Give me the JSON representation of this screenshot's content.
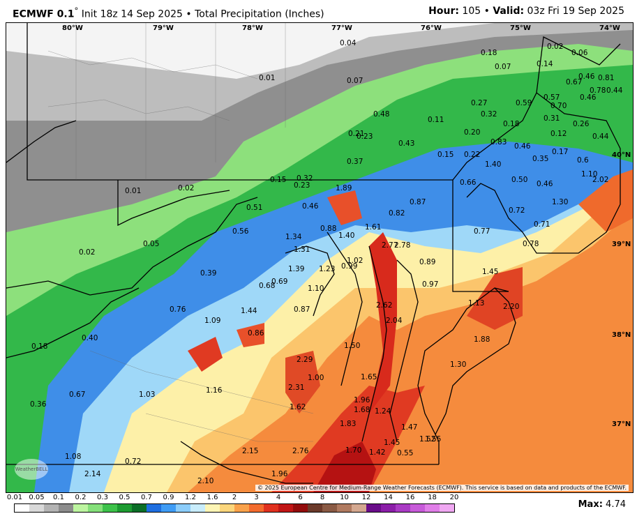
{
  "header": {
    "model": "ECMWF 0.1",
    "degree": "°",
    "init": "Init 18z 14 Sep 2025",
    "bullet": "•",
    "product": "Total Precipitation (Inches)",
    "hour_label": "Hour:",
    "hour_value": "105",
    "valid_label": "Valid:",
    "valid_value": "03z Fri 19 Sep 2025"
  },
  "map": {
    "longitude_labels": [
      "80°W",
      "79°W",
      "78°W",
      "77°W",
      "76°W",
      "75°W",
      "74°W"
    ],
    "latitude_labels": [
      "40°N",
      "39°N",
      "38°N",
      "37°N"
    ],
    "value_labels": [
      "0.04",
      "0.18",
      "0.02",
      "0.06",
      "0.01",
      "0.07",
      "0.07",
      "0.14",
      "0.46",
      "0.81",
      "0.67",
      "0.78",
      "0.44",
      "0.46",
      "0.57",
      "0.27",
      "0.59",
      "0.70",
      "0.48",
      "0.32",
      "0.11",
      "0.18",
      "0.31",
      "0.26",
      "0.21",
      "0.23",
      "0.20",
      "0.12",
      "0.44",
      "0.43",
      "0.83",
      "0.46",
      "0.17",
      "0.15",
      "0.22",
      "0.35",
      "0.6",
      "0.37",
      "1.40",
      "1.10",
      "0.32",
      "0.15",
      "0.23",
      "0.66",
      "0.50",
      "0.46",
      "2.02",
      "0.01",
      "0.02",
      "1.89",
      "1.30",
      "0.51",
      "0.46",
      "0.82",
      "0.87",
      "0.72",
      "0.88",
      "1.61",
      "0.71",
      "0.56",
      "1.34",
      "1.40",
      "0.77",
      "2.77",
      "2.78",
      "1.31",
      "0.78",
      "0.05",
      "1.02",
      "0.89",
      "0.02",
      "1.39",
      "1.23",
      "0.99",
      "1.45",
      "0.39",
      "0.69",
      "0.68",
      "0.97",
      "1.10",
      "0.76",
      "1.44",
      "0.87",
      "2.62",
      "1.13",
      "2.20",
      "1.09",
      "2.04",
      "0.86",
      "0.18",
      "0.40",
      "1.88",
      "1.50",
      "2.29",
      "1.30",
      "1.00",
      "1.65",
      "2.31",
      "1.16",
      "1.03",
      "0.67",
      "0.36",
      "1.62",
      "1.96",
      "1.68",
      "1.24",
      "1.83",
      "1.47",
      "1.45",
      "1.52",
      "1.55",
      "2.15",
      "2.76",
      "1.70",
      "1.42",
      "0.55",
      "1.08",
      "0.72",
      "2.14",
      "1.96",
      "2.10"
    ],
    "copyright": "© 2025 European Centre for Medium-Range Weather Forecasts (ECMWF). This service is based on data and products of the ECMWF.",
    "logo": "WeatherBELL"
  },
  "legend": {
    "ticks": [
      "0.01",
      "0.05",
      "0.1",
      "0.2",
      "0.3",
      "0.5",
      "0.7",
      "0.9",
      "1.2",
      "1.6",
      "2",
      "3",
      "4",
      "6",
      "8",
      "10",
      "12",
      "14",
      "16",
      "18",
      "20"
    ],
    "colors": [
      "#ffffff",
      "#d9d9d9",
      "#b3b3b3",
      "#8c8c8c",
      "#bdf5a0",
      "#85e07a",
      "#3dc24a",
      "#1d9b32",
      "#0b6e27",
      "#1e6ee0",
      "#3f9cf5",
      "#8ccdfa",
      "#c8ecfb",
      "#fdf5b5",
      "#fbd67c",
      "#f9a24b",
      "#f36c2e",
      "#e0311f",
      "#c11616",
      "#930c0c",
      "#6b3a2a",
      "#8a5a44",
      "#b07a60",
      "#d4a890",
      "#6a0d8a",
      "#8b1ea8",
      "#a93bc4",
      "#c75bd9",
      "#e07ee8",
      "#f0a8f2"
    ],
    "max_label": "Max:",
    "max_value": "4.74"
  }
}
